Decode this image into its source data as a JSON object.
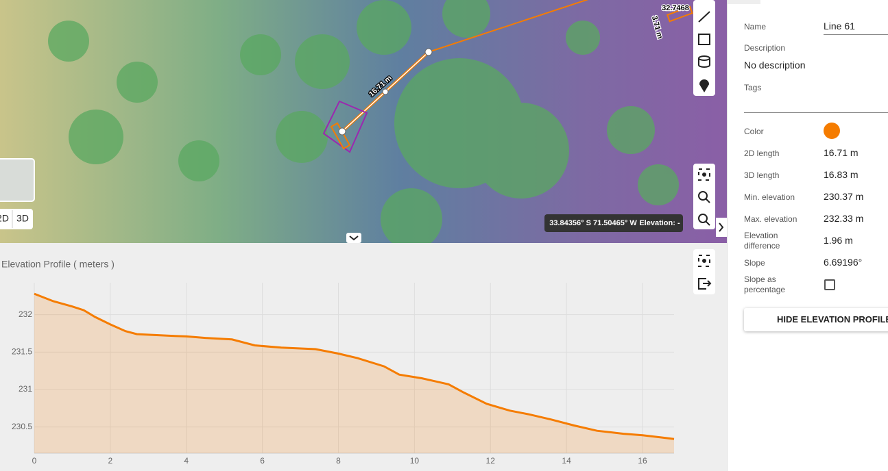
{
  "map": {
    "measure_label": "16.71 m",
    "other_label": "32.7468",
    "other_side_label": "3.71 m",
    "view_2d": "2D",
    "view_3d": "3D",
    "coords": "33.84356° S 71.50465° W",
    "elevation": "Elevation: -"
  },
  "chart_data": {
    "type": "area",
    "title": "Elevation Profile ( meters )",
    "color": "#f57c00",
    "x": [
      0,
      0.5,
      1,
      1.3,
      1.6,
      2,
      2.4,
      2.7,
      3.5,
      4,
      4.5,
      5.2,
      5.8,
      6.5,
      7.4,
      8,
      8.5,
      9.2,
      9.6,
      10.2,
      10.9,
      11.3,
      11.9,
      12.5,
      13,
      13.6,
      14.2,
      14.8,
      15.5,
      16,
      16.5,
      16.83
    ],
    "values": [
      232.28,
      232.18,
      232.11,
      232.06,
      231.97,
      231.87,
      231.78,
      231.74,
      231.72,
      231.71,
      231.69,
      231.67,
      231.59,
      231.56,
      231.54,
      231.48,
      231.42,
      231.31,
      231.2,
      231.15,
      231.07,
      230.96,
      230.81,
      230.72,
      230.67,
      230.6,
      230.52,
      230.45,
      230.41,
      230.39,
      230.36,
      230.34
    ],
    "xlim": [
      0,
      16.83
    ],
    "ylim": [
      230.15,
      232.5
    ],
    "xticks": [
      0,
      2,
      4,
      6,
      8,
      10,
      12,
      14,
      16
    ],
    "yticks": [
      230.5,
      231,
      231.5,
      232
    ],
    "grid": true
  },
  "panel": {
    "name_label": "Name",
    "name_value": "Line 61",
    "description_label": "Description",
    "description_value": "No description",
    "tags_label": "Tags",
    "color_label": "Color",
    "color_value": "#f57c00",
    "fields": [
      {
        "label": "2D length",
        "value": "16.71 m"
      },
      {
        "label": "3D length",
        "value": "16.83 m"
      },
      {
        "label": "Min. elevation",
        "value": "230.37 m"
      },
      {
        "label": "Max. elevation",
        "value": "232.33 m"
      },
      {
        "label": "Elevation difference",
        "value": "1.96 m"
      },
      {
        "label": "Slope",
        "value": "6.69196°"
      }
    ],
    "slope_pct_label": "Slope as percentage",
    "button": "HIDE ELEVATION PROFILE"
  }
}
